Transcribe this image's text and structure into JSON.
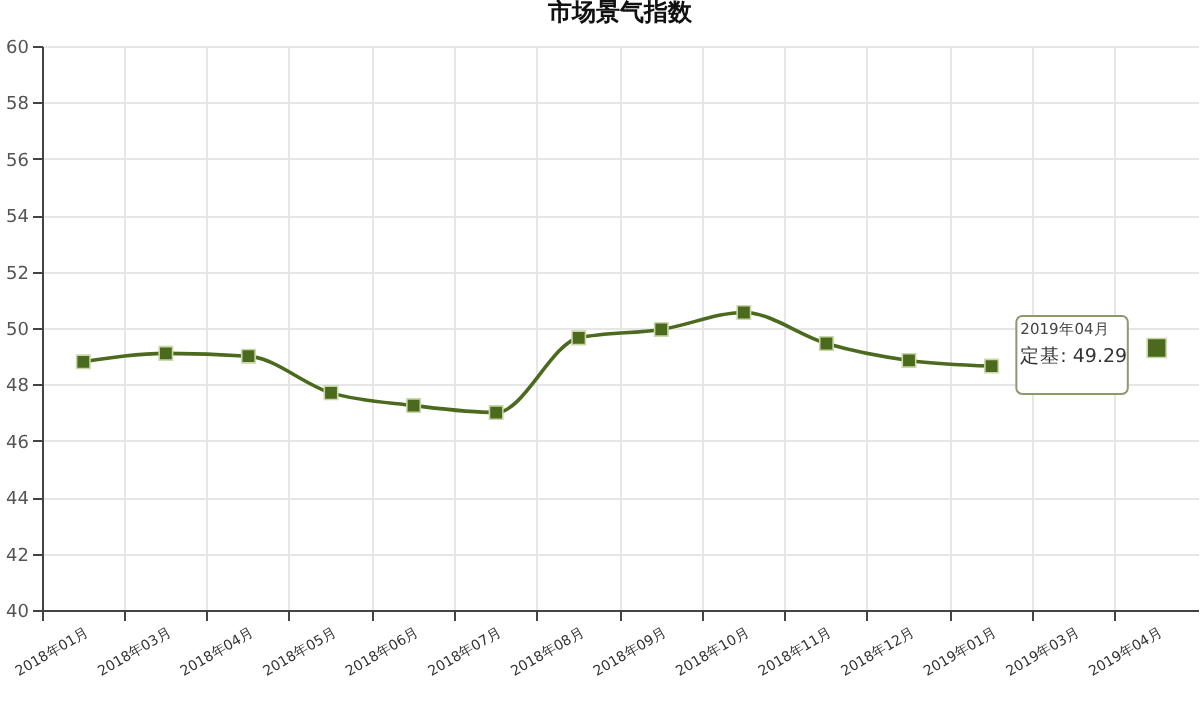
{
  "chart_data": {
    "type": "line",
    "title": "市场景气指数",
    "categories": [
      "2018年01月",
      "2018年03月",
      "2018年04月",
      "2018年05月",
      "2018年06月",
      "2018年07月",
      "2018年08月",
      "2018年09月",
      "2018年10月",
      "2018年11月",
      "2018年12月",
      "2019年01月",
      "2019年03月",
      "2019年04月"
    ],
    "series": [
      {
        "color": "#4b6a1e",
        "values": [
          48.8,
          49.1,
          49.0,
          47.7,
          47.25,
          47.0,
          49.65,
          49.95,
          50.55,
          49.45,
          48.85,
          48.65,
          null,
          49.29
        ]
      }
    ],
    "ylim": [
      40,
      60
    ],
    "yticks": [
      40,
      42,
      44,
      46,
      48,
      50,
      52,
      54,
      56,
      58,
      60
    ],
    "grid": true,
    "marker": "square",
    "line_style": "solid",
    "annotations": [
      "2019年04月",
      {
        "text": "定基: 49.29",
        "x": "2019年04月",
        "y": 49.29
      }
    ]
  }
}
